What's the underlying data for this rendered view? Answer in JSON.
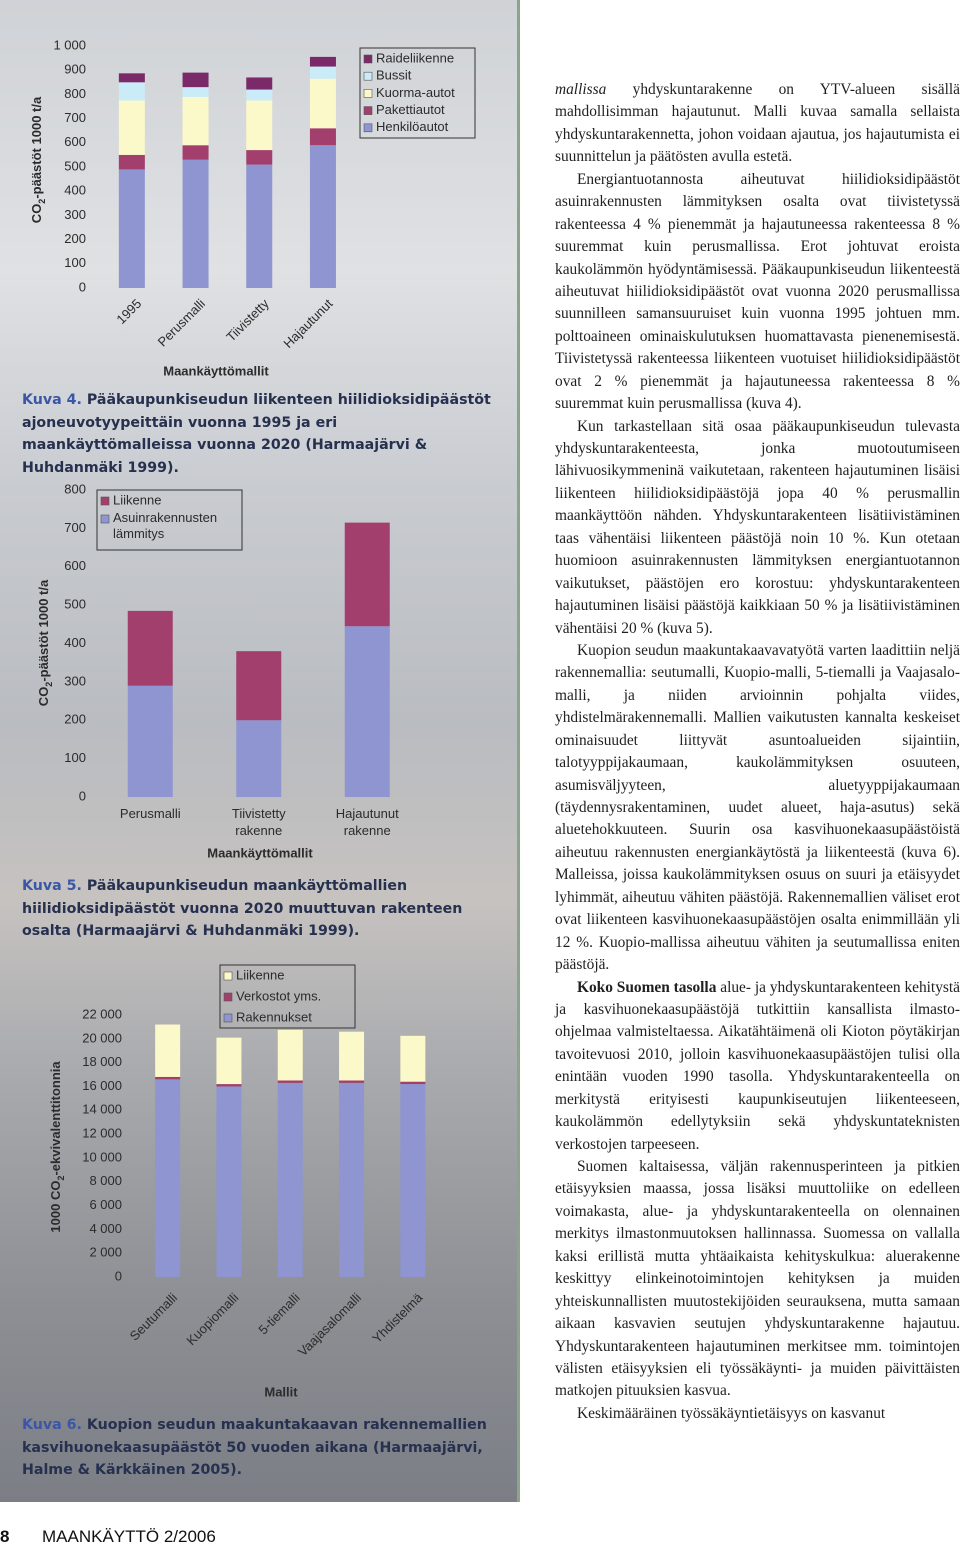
{
  "chart_data": [
    {
      "type": "stacked-bar",
      "ylabel_parts": [
        "CO",
        "2",
        "-päästöt 1000 t/a"
      ],
      "xlabel": "Maankäyttömallit",
      "categories": [
        "1995",
        "Perusmalli",
        "Tiivistetty",
        "Hajautunut"
      ],
      "ylim": [
        0,
        1000
      ],
      "yticks": [
        0,
        100,
        200,
        300,
        400,
        500,
        600,
        700,
        800,
        900,
        {
          "value": 1000,
          "label": "1 000"
        }
      ],
      "series": [
        {
          "name": "Henkilöautot",
          "color": "#8e95d0",
          "values": [
            490,
            530,
            510,
            590
          ]
        },
        {
          "name": "Pakettiautot",
          "color": "#a23f6c",
          "values": [
            60,
            60,
            60,
            70
          ]
        },
        {
          "name": "Kuorma-autot",
          "color": "#fbf8c9",
          "values": [
            225,
            200,
            205,
            205
          ]
        },
        {
          "name": "Bussit",
          "color": "#c9ecf8",
          "values": [
            75,
            40,
            45,
            50
          ]
        },
        {
          "name": "Raideliikenne",
          "color": "#7a2a69",
          "values": [
            37,
            60,
            50,
            40
          ]
        }
      ]
    },
    {
      "type": "stacked-bar",
      "ylabel_parts": [
        "CO",
        "2",
        "-päästöt 1000 t/a"
      ],
      "xlabel": "Maankäyttömallit",
      "categories": [
        "Perusmalli",
        "Tiivistetty rakenne",
        "Hajautunut rakenne"
      ],
      "ylim": [
        0,
        800
      ],
      "yticks": [
        0,
        100,
        200,
        300,
        400,
        500,
        600,
        700,
        800
      ],
      "series": [
        {
          "name": "Asuinrakennusten lämmitys",
          "color": "#8e95d0",
          "values": [
            290,
            200,
            445
          ]
        },
        {
          "name": "Liikenne",
          "color": "#a23f6c",
          "values": [
            195,
            180,
            270
          ]
        }
      ]
    },
    {
      "type": "stacked-bar",
      "ylabel_parts": [
        "1000 CO",
        "2",
        "-ekvivalenttitonnia"
      ],
      "xlabel": "Mallit",
      "categories": [
        "Seutumalli",
        "Kuopiomalli",
        "5-tiemalli",
        "Vaajasalomalli",
        "Yhdistelmä"
      ],
      "ylim": [
        0,
        22000
      ],
      "yticks": [
        0,
        {
          "value": 2000,
          "label": "2 000"
        },
        {
          "value": 4000,
          "label": "4 000"
        },
        {
          "value": 6000,
          "label": "6 000"
        },
        {
          "value": 8000,
          "label": "8 000"
        },
        {
          "value": 10000,
          "label": "10 000"
        },
        {
          "value": 12000,
          "label": "12 000"
        },
        {
          "value": 14000,
          "label": "14 000"
        },
        {
          "value": 16000,
          "label": "16 000"
        },
        {
          "value": 18000,
          "label": "18 000"
        },
        {
          "value": 20000,
          "label": "20 000"
        },
        {
          "value": 22000,
          "label": "22 000"
        }
      ],
      "series": [
        {
          "name": "Rakennukset",
          "color": "#8e95d0",
          "values": [
            16600,
            16000,
            16300,
            16300,
            16200
          ]
        },
        {
          "name": "Verkostot yms.",
          "color": "#a23f6c",
          "values": [
            200,
            200,
            200,
            200,
            200
          ]
        },
        {
          "name": "Liikenne",
          "color": "#fbf8c9",
          "values": [
            4400,
            3900,
            4250,
            4100,
            3850
          ]
        }
      ]
    }
  ],
  "captions": [
    {
      "label": "Kuva 4.",
      "text": "Pääkaupunkiseudun liikenteen hiilidioksidipäästöt ajoneuvotyypeittäin vuonna 1995 ja eri maankäyttömalleissa vuonna 2020 (Harmaajärvi & Huhdanmäki 1999)."
    },
    {
      "label": "Kuva 5.",
      "text": "Pääkaupunkiseudun maankäyttömallien hiilidioksidipäästöt vuonna 2020 muuttuvan rakenteen osalta (Harmaajärvi & Huhdanmäki 1999)."
    },
    {
      "label": "Kuva 6.",
      "text": "Kuopion seudun maakuntakaavan rakennemallien kasvihuonekaasupäästöt 50 vuoden aikana (Harmaajärvi, Halme & Kärkkäinen 2005)."
    }
  ],
  "body": {
    "paragraphs": [
      {
        "italic": "mallissa",
        "text": " yhdyskuntarakenne on YTV-alueen sisällä mahdollisimman hajautunut. Malli kuvaa samalla sellaista yhdyskuntarakennetta, johon voidaan ajautua, jos hajautumista ei suunnittelun ja päätösten avulla estetä."
      },
      {
        "text": "Energiantuotannosta aiheutuvat hiilidioksidipäästöt asuinrakennusten lämmityksen osalta ovat tiivistetyssä rakenteessa 4 % pienemmät ja hajautuneessa rakenteessa 8 % suuremmat kuin perusmallissa. Erot johtuvat eroista kaukolämmön hyödyntämisessä. Pääkaupunkiseudun liikenteestä aiheutuvat hiilidioksidipäästöt ovat vuonna 2020 perusmallissa suunnilleen samansuuruiset kuin vuonna 1995 johtuen mm. polttoaineen ominaiskulutuksen huomattavasta pienenemisestä. Tiivistetyssä rakenteessa liikenteen vuotuiset hiilidioksidipäästöt ovat 2 % pienemmät ja hajautuneessa rakenteessa 8 % suuremmat kuin perusmallissa (kuva 4)."
      },
      {
        "text": "Kun tarkastellaan sitä osaa pääkaupunkiseudun tulevasta yhdyskuntarakenteesta, jonka muotoutumiseen lähivuosikymmeninä vaikutetaan, rakenteen hajautuminen lisäisi liikenteen hiilidioksidipäästöjä jopa 40 % perusmallin maankäyttöön nähden. Yhdyskuntarakenteen lisätiivistäminen taas vähentäisi liikenteen päästöjä noin 10 %. Kun otetaan huomioon asuinrakennusten lämmityksen energiantuotannon vaikutukset, päästöjen ero korostuu: yhdyskuntarakenteen hajautuminen lisäisi päästöjä kaikkiaan 50 % ja lisätiivistäminen vähentäisi 20 % (kuva 5)."
      },
      {
        "text": "Kuopion seudun maakuntakaavavatyötä varten laadittiin neljä rakennemallia: seutumalli, Kuopio-malli, 5-tiemalli ja Vaajasalo-malli, ja niiden arvioinnin pohjalta viides, yhdistelmärakennemalli. Mallien vaikutusten kannalta keskeiset ominaisuudet liittyvät asuntoalueiden sijaintiin, talotyyppijakaumaan, kaukolämmityksen osuuteen, asumisväljyyteen, aluetyyppijakaumaan (täydennysrakentaminen, uudet alueet, haja-asutus) sekä aluetehokkuuteen. Suurin osa kasvihuonekaasupäästöistä aiheutuu rakennusten energiankäytöstä ja liikenteestä (kuva 6). Malleissa, joissa kaukolämmityksen osuus on suuri ja etäisyydet lyhimmät, aiheutuu vähiten päästöjä. Rakennemallien väliset erot ovat liikenteen kasvihuonekaasupäästöjen osalta enimmillään yli 12 %. Kuopio-mallissa aiheutuu vähiten ja seutumallissa eniten päästöjä."
      },
      {
        "bold": "Koko Suomen tasolla",
        "text": " alue- ja yhdyskuntarakenteen kehitystä ja kasvihuonekaasupäästöjä tutkittiin kansallista ilmasto-ohjelmaa valmisteltaessa. Aikatähtäimenä oli Kioton pöytäkirjan tavoitevuosi 2010, jolloin kasvihuonekaasupäästöjen tulisi olla enintään vuoden 1990 tasolla. Yhdyskuntarakenteella on merkitystä erityisesti kaupunkiseutujen liikenteeseen, kaukolämmön edellytyksiin sekä yhdyskuntateknisten verkostojen tarpeeseen."
      },
      {
        "text": "Suomen kaltaisessa, väljän rakennusperinteen ja pitkien etäisyyksien maassa, jossa lisäksi muuttoliike on edelleen voimakasta, alue- ja yhdyskuntarakenteella on olennainen merkitys ilmastonmuutoksen hallinnassa. Suomessa on vallalla kaksi erillistä mutta yhtäaikaista kehityskulkua: aluerakenne keskittyy elinkeinotoimintojen kehityksen ja muiden yhteiskunnallisten muutostekijöiden seurauksena, mutta samaan aikaan kasvavien seutujen yhdyskuntarakenne hajautuu. Yhdyskuntarakenteen hajautuminen merkitsee mm. toimintojen välisten etäisyyksien eli työssäkäynti- ja muiden päivittäisten matkojen pituuksien kasvua."
      },
      {
        "text": "Keskimääräinen työssäkäyntietäisyys on kasvanut"
      }
    ]
  },
  "footer": {
    "page": "8",
    "publication": "MAANKÄYTTÖ 2/2006"
  }
}
